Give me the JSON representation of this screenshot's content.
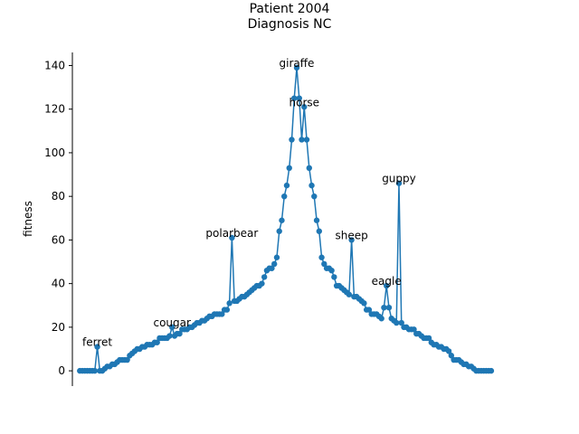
{
  "chart_data": {
    "type": "line",
    "title": "Patient 2004\nDiagnosis NC",
    "xlabel": "",
    "ylabel": "fitness",
    "ylim": [
      -7,
      146
    ],
    "xlim": [
      -3,
      177
    ],
    "grid": false,
    "y_ticks": [
      0,
      20,
      40,
      60,
      80,
      100,
      120,
      140
    ],
    "x_ticks": [],
    "series": [
      {
        "color": "#1f77b4",
        "marker": "circle",
        "values": [
          0,
          0,
          0,
          0,
          0,
          0,
          0,
          11,
          0,
          0,
          1,
          2,
          2,
          3,
          3,
          4,
          5,
          5,
          5,
          5,
          7,
          8,
          9,
          10,
          10,
          11,
          11,
          12,
          12,
          12,
          13,
          13,
          15,
          15,
          15,
          15,
          16,
          20,
          16,
          17,
          17,
          19,
          19,
          19,
          20,
          20,
          21,
          22,
          22,
          23,
          23,
          24,
          25,
          25,
          26,
          26,
          26,
          26,
          28,
          28,
          31,
          61,
          32,
          32,
          33,
          34,
          34,
          35,
          36,
          37,
          38,
          39,
          39,
          40,
          43,
          46,
          47,
          47,
          49,
          52,
          64,
          69,
          80,
          85,
          93,
          106,
          125,
          139,
          125,
          106,
          121,
          106,
          93,
          85,
          80,
          69,
          64,
          52,
          49,
          47,
          47,
          46,
          43,
          39,
          39,
          38,
          37,
          36,
          35,
          60,
          34,
          34,
          33,
          32,
          31,
          28,
          28,
          26,
          26,
          26,
          25,
          24,
          29,
          39,
          29,
          24,
          23,
          22,
          86,
          22,
          20,
          20,
          19,
          19,
          19,
          17,
          17,
          16,
          15,
          15,
          15,
          13,
          12,
          12,
          11,
          11,
          10,
          10,
          9,
          7,
          5,
          5,
          5,
          4,
          3,
          3,
          2,
          2,
          1,
          0,
          0,
          0,
          0,
          0,
          0,
          0
        ],
        "points": [
          {
            "label": "ferret",
            "index": 7,
            "value": 11
          },
          {
            "label": "cougar",
            "index": 37,
            "value": 20
          },
          {
            "label": "polarbear",
            "index": 61,
            "value": 61
          },
          {
            "label": "giraffe",
            "index": 87,
            "value": 139
          },
          {
            "label": "horse",
            "index": 90,
            "value": 121
          },
          {
            "label": "sheep",
            "index": 109,
            "value": 60
          },
          {
            "label": "eagle",
            "index": 123,
            "value": 39
          },
          {
            "label": "guppy",
            "index": 128,
            "value": 86
          }
        ]
      }
    ],
    "annotations": [
      "ferret",
      "cougar",
      "polarbear",
      "giraffe",
      "horse",
      "sheep",
      "eagle",
      "guppy"
    ]
  }
}
